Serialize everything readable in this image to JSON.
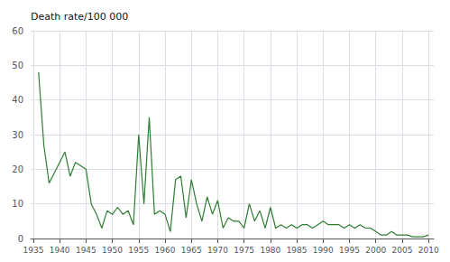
{
  "chart_data": {
    "type": "line",
    "ylabel": "Death rate/100 000",
    "x": [
      1936,
      1937,
      1938,
      1939,
      1940,
      1941,
      1942,
      1943,
      1944,
      1945,
      1946,
      1947,
      1948,
      1949,
      1950,
      1951,
      1952,
      1953,
      1954,
      1955,
      1956,
      1957,
      1958,
      1959,
      1960,
      1961,
      1962,
      1963,
      1964,
      1965,
      1966,
      1967,
      1968,
      1969,
      1970,
      1971,
      1972,
      1973,
      1974,
      1975,
      1976,
      1977,
      1978,
      1979,
      1980,
      1981,
      1982,
      1983,
      1984,
      1985,
      1986,
      1987,
      1988,
      1989,
      1990,
      1991,
      1992,
      1993,
      1994,
      1995,
      1996,
      1997,
      1998,
      1999,
      2000,
      2001,
      2002,
      2003,
      2004,
      2005,
      2006,
      2007,
      2008,
      2009,
      2010
    ],
    "values": [
      48,
      27,
      16,
      19,
      22,
      25,
      18,
      22,
      21,
      20,
      10,
      7,
      3,
      8,
      7,
      9,
      7,
      8,
      4,
      30,
      10,
      35,
      7,
      8,
      7,
      2,
      17,
      18,
      6,
      17,
      10,
      5,
      12,
      7,
      11,
      3,
      6,
      5,
      5,
      3,
      10,
      5,
      8,
      3,
      9,
      3,
      4,
      3,
      4,
      3,
      4,
      4,
      3,
      4,
      5,
      4,
      4,
      4,
      3,
      4,
      3,
      4,
      3,
      3,
      2,
      1,
      1,
      2,
      1,
      1,
      1,
      0.5,
      0.5,
      0.5,
      1
    ],
    "color": "#2e7d32",
    "xlim": [
      1934.5,
      2011
    ],
    "xticks": [
      1935,
      1940,
      1945,
      1950,
      1955,
      1960,
      1965,
      1970,
      1975,
      1980,
      1985,
      1990,
      1995,
      2000,
      2005,
      2010
    ],
    "ylim": [
      0,
      60
    ],
    "yticks": [
      0,
      10,
      20,
      30,
      40,
      50,
      60
    ],
    "grid": true
  }
}
